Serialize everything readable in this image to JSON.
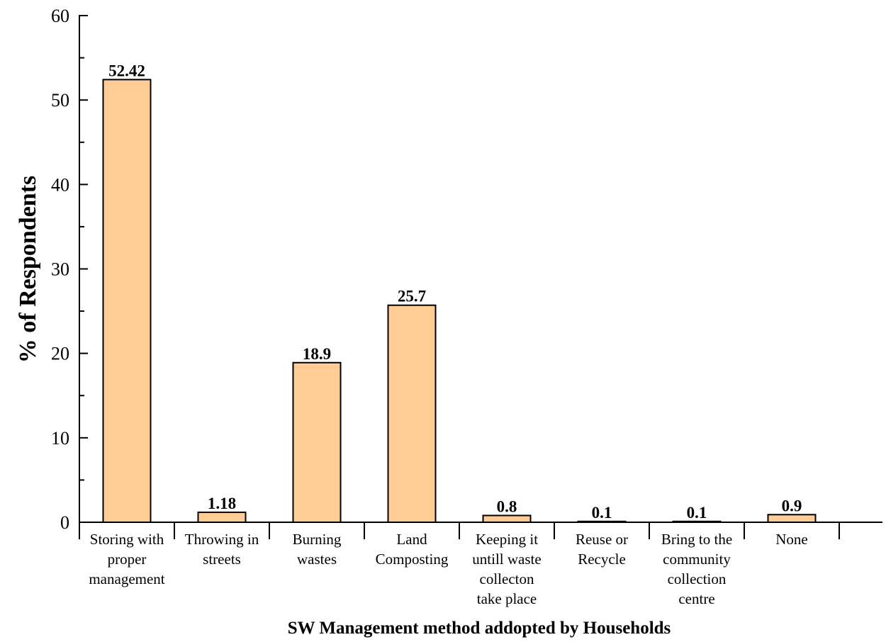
{
  "chart_data": {
    "type": "bar",
    "categories": [
      [
        "Storing with",
        "proper",
        "management"
      ],
      [
        "Throwing in",
        "streets"
      ],
      [
        "Burning",
        "wastes"
      ],
      [
        "Land",
        "Composting"
      ],
      [
        "Keeping it",
        "untill waste",
        "collecton",
        "take place"
      ],
      [
        "Reuse or",
        "Recycle"
      ],
      [
        "Bring to the",
        "community",
        "collection",
        "centre"
      ],
      [
        "None"
      ]
    ],
    "values": [
      52.42,
      1.18,
      18.9,
      25.7,
      0.8,
      0.1,
      0.1,
      0.9
    ],
    "data_labels": [
      "52.42",
      "1.18",
      "18.9",
      "25.7",
      "0.8",
      "0.1",
      "0.1",
      "0.9"
    ],
    "xlabel": "SW Management method addopted by Households",
    "ylabel": "% of Respondents",
    "ylim": [
      0,
      60
    ],
    "yticks": [
      0,
      10,
      20,
      30,
      40,
      50,
      60
    ],
    "grid": false,
    "bar_color": "#FFCC96",
    "bar_edge_color": "#000000"
  }
}
